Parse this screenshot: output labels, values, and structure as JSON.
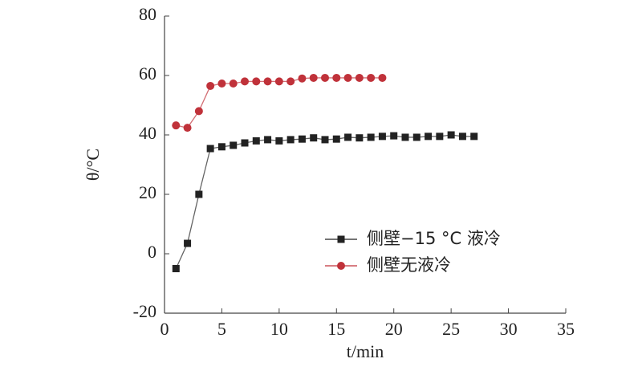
{
  "chart_data": {
    "type": "line",
    "x_label": "t/min",
    "y_label": "θ/°C",
    "xlim": [
      0,
      35
    ],
    "xticks": [
      0,
      5,
      10,
      15,
      20,
      25,
      30,
      35
    ],
    "ylim": [
      -20,
      80
    ],
    "yticks": [
      -20,
      0,
      20,
      40,
      60,
      80
    ],
    "legend": "right",
    "series": [
      {
        "name": "侧壁−15 °C  液冷",
        "color": "#222222",
        "marker": "square",
        "x": [
          1,
          2,
          3,
          4,
          5,
          6,
          7,
          8,
          9,
          10,
          11,
          12,
          13,
          14,
          15,
          16,
          17,
          18,
          19,
          20,
          21,
          22,
          23,
          24,
          25,
          26,
          27
        ],
        "values": [
          -5,
          3.5,
          20,
          35.4,
          36,
          36.5,
          37.3,
          38,
          38.4,
          38,
          38.4,
          38.6,
          39,
          38.4,
          38.6,
          39.2,
          39,
          39.2,
          39.5,
          39.7,
          39.2,
          39.2,
          39.5,
          39.5,
          40,
          39.5,
          39.5
        ]
      },
      {
        "name": "侧壁无液冷",
        "color": "#c0323a",
        "marker": "circle",
        "x": [
          1,
          2,
          3,
          4,
          5,
          6,
          7,
          8,
          9,
          10,
          11,
          12,
          13,
          14,
          15,
          16,
          17,
          18,
          19
        ],
        "values": [
          43.2,
          42.4,
          48,
          56.5,
          57.3,
          57.3,
          58,
          58,
          58,
          58,
          58,
          59,
          59.2,
          59.2,
          59.2,
          59.2,
          59.2,
          59.2,
          59.2
        ]
      }
    ]
  }
}
